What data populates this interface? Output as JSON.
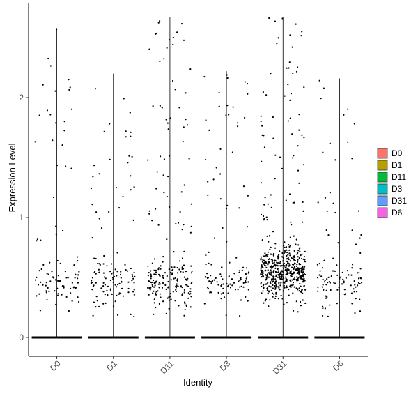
{
  "chart_data": {
    "type": "violin-jitter",
    "title": "",
    "xlabel": "Identity",
    "ylabel": "Expression Level",
    "ylim": [
      -0.15,
      2.8
    ],
    "y_ticks": [
      0,
      1,
      2
    ],
    "grid": false,
    "legend_position": "right",
    "categories": [
      "D0",
      "D1",
      "D11",
      "D3",
      "D31",
      "D6"
    ],
    "legend": [
      {
        "label": "D0",
        "color": "#F8766D"
      },
      {
        "label": "D1",
        "color": "#B79F00"
      },
      {
        "label": "D11",
        "color": "#00BA38"
      },
      {
        "label": "D3",
        "color": "#00BFC4"
      },
      {
        "label": "D31",
        "color": "#619CFF"
      },
      {
        "label": "D6",
        "color": "#F564E3"
      }
    ],
    "series": [
      {
        "category": "D0",
        "max": 2.58,
        "nonzero_count": 95
      },
      {
        "category": "D1",
        "max": 2.2,
        "nonzero_count": 125
      },
      {
        "category": "D11",
        "max": 2.67,
        "nonzero_count": 215
      },
      {
        "category": "D3",
        "max": 2.22,
        "nonzero_count": 120
      },
      {
        "category": "D31",
        "max": 2.67,
        "nonzero_count": 560
      },
      {
        "category": "D6",
        "max": 2.16,
        "nonzero_count": 110
      }
    ]
  }
}
